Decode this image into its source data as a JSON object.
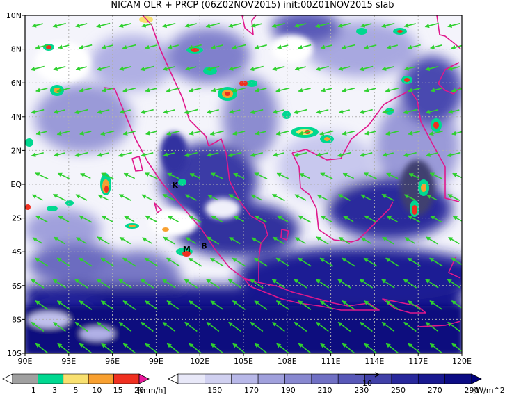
{
  "title": "NICAM OLR + PRCP (06Z02NOV2015) init:00Z01NOV2015 slab",
  "map": {
    "lon_labels": [
      "90E",
      "93E",
      "96E",
      "99E",
      "102E",
      "105E",
      "108E",
      "111E",
      "114E",
      "117E",
      "120E"
    ],
    "lat_labels": [
      "10N",
      "8N",
      "6N",
      "4N",
      "2N",
      "EQ",
      "2S",
      "4S",
      "6S",
      "8S",
      "10S"
    ],
    "places": [
      {
        "label": "K",
        "lon": 100.3,
        "lat": -0.2
      },
      {
        "label": "M",
        "lon": 101.1,
        "lat": -4.0
      },
      {
        "label": "B",
        "lon": 102.3,
        "lat": -3.8
      }
    ],
    "vector_ref": "10"
  },
  "colorbars": {
    "precip": {
      "colors": [
        "#ffffff",
        "#a0a0a0",
        "#00d890",
        "#f8e070",
        "#f8a030",
        "#f03020",
        "#e8189c"
      ],
      "labels": [
        "1",
        "3",
        "5",
        "10",
        "15",
        "20"
      ],
      "unit": "[mm/h]"
    },
    "olr": {
      "colors": [
        "#ffffff",
        "#e8e8f8",
        "#d0d0f0",
        "#b8b8e8",
        "#a0a0dc",
        "#8888d0",
        "#7070c4",
        "#5858b8",
        "#4040a8",
        "#28289c",
        "#181890",
        "#0c0c84",
        "#00007c"
      ],
      "labels": [
        "150",
        "170",
        "190",
        "210",
        "230",
        "250",
        "270",
        "290"
      ],
      "unit": "[W/m^2]"
    }
  },
  "colors": {
    "coast": "#e0188c",
    "wind": "#30d030",
    "grid": "#b0b0b0"
  }
}
